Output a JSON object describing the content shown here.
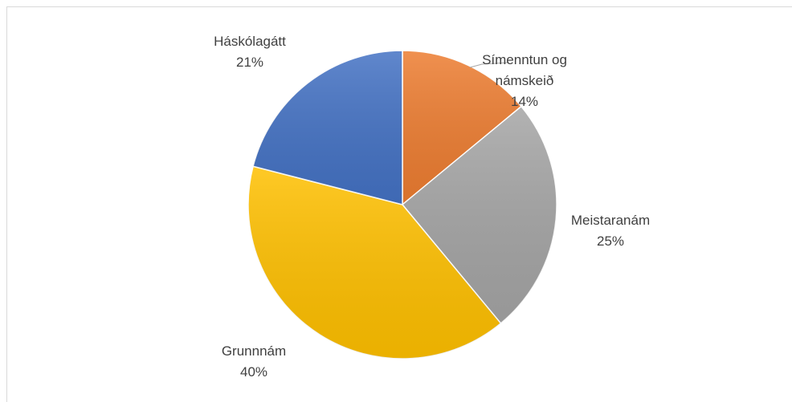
{
  "chart_data": {
    "type": "pie",
    "categories": [
      "Símenntun og námskeið",
      "Meistaranám",
      "Grunnnám",
      "Háskólagátt"
    ],
    "values": [
      14,
      25,
      40,
      21
    ],
    "value_labels": [
      "14%",
      "25%",
      "40%",
      "21%"
    ],
    "colors": [
      "#ed7d31",
      "#a5a5a5",
      "#ffc000",
      "#4472c4"
    ]
  }
}
